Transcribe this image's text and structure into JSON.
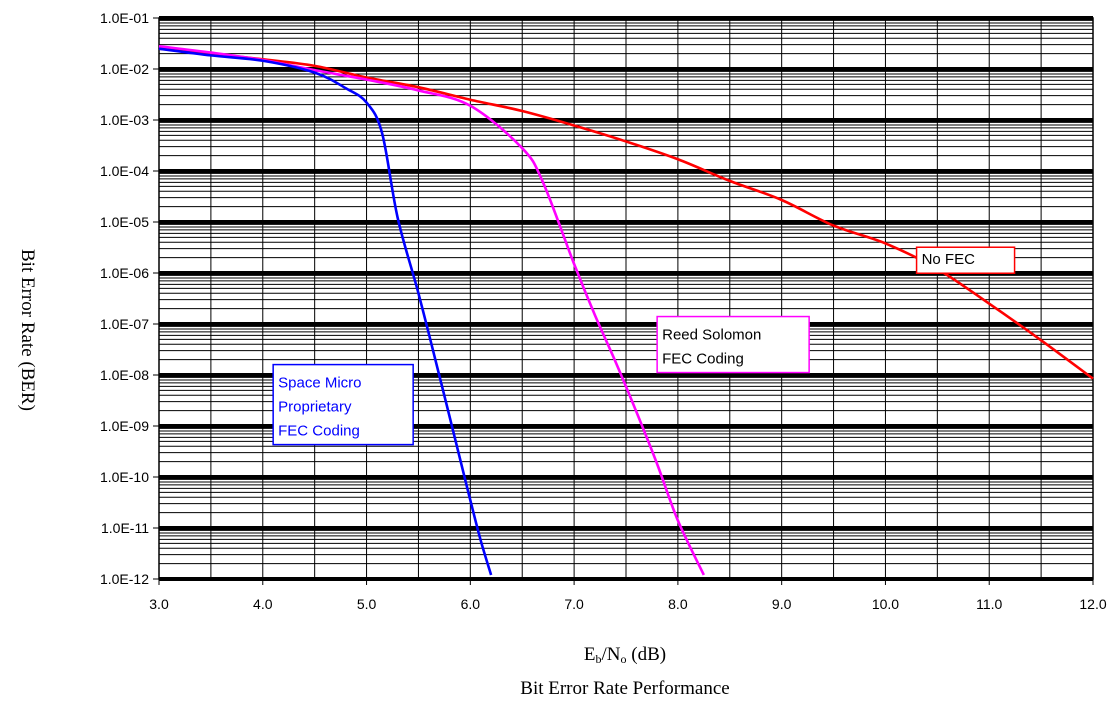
{
  "chart_data": {
    "type": "line",
    "title": "Bit Error Rate Performance",
    "xlabel": "Eb/No (dB)",
    "xlabel_parts": {
      "E": "E",
      "b": "b",
      "slash_N": "/N",
      "o": "o",
      "unit": " (dB)"
    },
    "ylabel": "Bit Error Rate (BER)",
    "xlim": [
      3.0,
      12.0
    ],
    "ylim_exponent": [
      -12,
      -1
    ],
    "y_scale": "log",
    "grid": true,
    "x_ticks": [
      "3.0",
      "4.0",
      "5.0",
      "6.0",
      "7.0",
      "8.0",
      "9.0",
      "10.0",
      "11.0",
      "12.0"
    ],
    "y_ticks": [
      "1.0E-01",
      "1.0E-02",
      "1.0E-03",
      "1.0E-04",
      "1.0E-05",
      "1.0E-06",
      "1.0E-07",
      "1.0E-08",
      "1.0E-09",
      "1.0E-10",
      "1.0E-11",
      "1.0E-12"
    ],
    "series": [
      {
        "name": "No FEC",
        "label_lines": [
          "No FEC"
        ],
        "color": "#ff0000",
        "points": [
          [
            3.0,
            0.025
          ],
          [
            3.5,
            0.02
          ],
          [
            4.0,
            0.0155
          ],
          [
            4.5,
            0.0115
          ],
          [
            5.0,
            0.0068
          ],
          [
            5.5,
            0.0044
          ],
          [
            6.0,
            0.0025
          ],
          [
            6.5,
            0.0015
          ],
          [
            7.0,
            0.00078
          ],
          [
            7.5,
            0.00038
          ],
          [
            8.0,
            0.00017
          ],
          [
            8.5,
            6.4e-05
          ],
          [
            9.0,
            2.7e-05
          ],
          [
            9.5,
            8.5e-06
          ],
          [
            10.0,
            3.8e-06
          ],
          [
            10.5,
            1.2e-06
          ],
          [
            11.0,
            2.5e-07
          ],
          [
            11.5,
            4.8e-08
          ],
          [
            12.0,
            8.5e-09
          ]
        ]
      },
      {
        "name": "Reed Solomon FEC Coding",
        "label_lines": [
          "Reed Solomon",
          "FEC Coding"
        ],
        "color": "#ff00ff",
        "points": [
          [
            3.0,
            0.028
          ],
          [
            3.5,
            0.021
          ],
          [
            4.0,
            0.015
          ],
          [
            4.5,
            0.0095
          ],
          [
            5.0,
            0.0062
          ],
          [
            5.5,
            0.0038
          ],
          [
            6.0,
            0.0019
          ],
          [
            6.5,
            0.00028
          ],
          [
            6.7,
            6e-05
          ],
          [
            7.0,
            1.5e-06
          ],
          [
            7.2,
            1.5e-07
          ],
          [
            7.4,
            1.8e-08
          ],
          [
            7.6,
            1.9e-09
          ],
          [
            7.8,
            1.8e-10
          ],
          [
            8.0,
            1.4e-11
          ],
          [
            8.25,
            1.2e-12
          ]
        ]
      },
      {
        "name": "Space Micro Proprietary FEC Coding",
        "label_lines": [
          "Space Micro",
          "Proprietary",
          "FEC Coding"
        ],
        "color": "#0000ff",
        "points": [
          [
            3.0,
            0.025
          ],
          [
            3.5,
            0.0185
          ],
          [
            4.0,
            0.0145
          ],
          [
            4.5,
            0.0085
          ],
          [
            4.8,
            0.0042
          ],
          [
            5.0,
            0.0022
          ],
          [
            5.15,
            0.00055
          ],
          [
            5.3,
            1.2e-05
          ],
          [
            5.5,
            4e-07
          ],
          [
            5.7,
            1e-08
          ],
          [
            5.9,
            2.3e-10
          ],
          [
            6.0,
            3.5e-11
          ],
          [
            6.1,
            5.7e-12
          ],
          [
            6.2,
            1.2e-12
          ]
        ]
      }
    ]
  }
}
